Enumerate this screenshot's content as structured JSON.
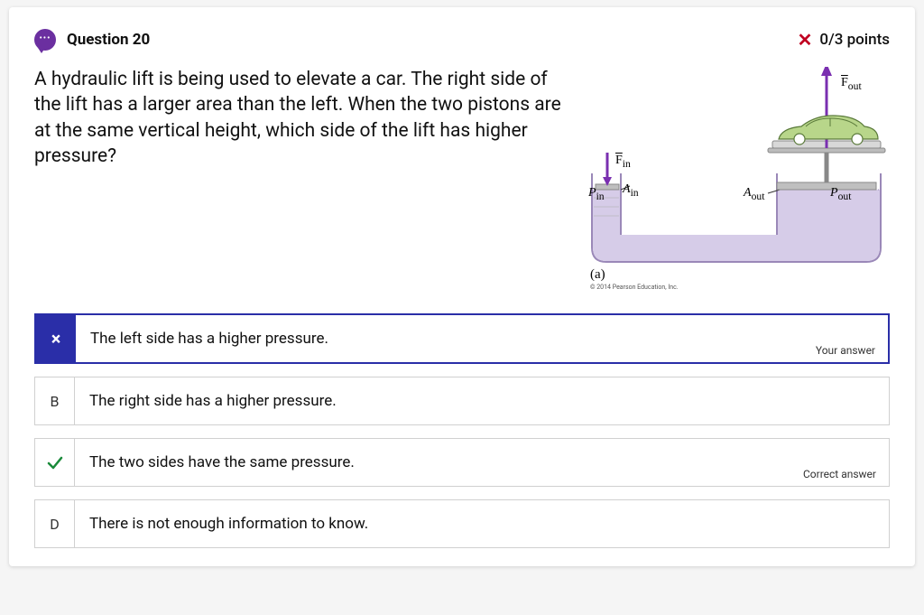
{
  "header": {
    "question_label": "Question 20",
    "score_text": "0/3 points"
  },
  "prompt": "A hydraulic lift is being used to elevate a car. The right side of the lift has a larger area than the left. When the two pistons are at the same vertical height, which side of the lift has higher pressure?",
  "figure": {
    "caption": "(a)",
    "copyright": "© 2014 Pearson Education, Inc.",
    "labels": {
      "F_in": "F",
      "F_in_sub": "in",
      "P_in": "P",
      "P_in_sub": "in",
      "A_in": "A",
      "A_in_sub": "in",
      "F_out": "F",
      "F_out_sub": "out",
      "A_out": "A",
      "A_out_sub": "out",
      "P_out": "P",
      "P_out_sub": "out"
    },
    "colors": {
      "fluid": "#d6cce8",
      "fluid_border": "#9a88b8",
      "arrow": "#7a2fb0",
      "car": "#b8d68a",
      "car_stroke": "#5a7a3a",
      "piston": "#bfbfbf",
      "piston_dark": "#888"
    }
  },
  "choices": [
    {
      "marker": "×",
      "text": "The left side has a higher pressure.",
      "state": "user",
      "tag": "Your answer"
    },
    {
      "marker": "B",
      "text": "The right side has a higher pressure.",
      "state": "normal",
      "tag": ""
    },
    {
      "marker": "✓",
      "text": "The two sides have the same pressure.",
      "state": "correct",
      "tag": "Correct answer"
    },
    {
      "marker": "D",
      "text": "There is not enough information to know.",
      "state": "normal",
      "tag": ""
    }
  ]
}
